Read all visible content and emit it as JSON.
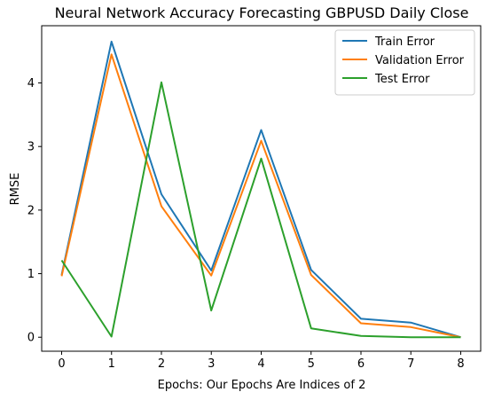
{
  "chart_data": {
    "type": "line",
    "title": "Neural Network Accuracy Forecasting GBPUSD Daily Close",
    "xlabel": "Epochs: Our Epochs Are Indices of 2",
    "ylabel": "RMSE",
    "x": [
      0,
      1,
      2,
      3,
      4,
      5,
      6,
      7,
      8
    ],
    "xticks": [
      "0",
      "1",
      "2",
      "3",
      "4",
      "5",
      "6",
      "7",
      "8"
    ],
    "yticks": [
      "0",
      "1",
      "2",
      "3",
      "4"
    ],
    "xlim": [
      -0.4,
      8.4
    ],
    "ylim": [
      -0.22,
      4.9
    ],
    "grid": false,
    "legend_position": "top-right",
    "series": [
      {
        "name": "Train Error",
        "color": "#1f77b4",
        "values": [
          0.98,
          4.65,
          2.25,
          1.05,
          3.26,
          1.06,
          0.29,
          0.23,
          0.0
        ]
      },
      {
        "name": "Validation Error",
        "color": "#ff7f0e",
        "values": [
          0.96,
          4.45,
          2.06,
          0.97,
          3.09,
          0.98,
          0.22,
          0.16,
          0.0
        ]
      },
      {
        "name": "Test Error",
        "color": "#2ca02c",
        "values": [
          1.21,
          0.01,
          4.01,
          0.42,
          2.81,
          0.14,
          0.02,
          0.0,
          0.0
        ]
      }
    ]
  }
}
